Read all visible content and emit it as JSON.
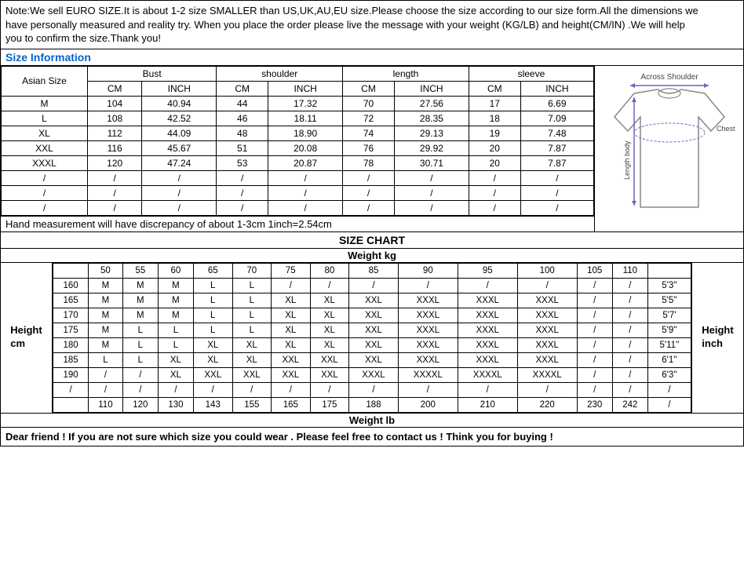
{
  "note": {
    "l1": "Note:We sell EURO SIZE.It is about 1-2 size SMALLER than US,UK,AU,EU size.Please choose the size according to our size form.All the dimensions we",
    "l2": "have personally measured and reality try. When you place the order please live the message with your weight (KG/LB) and height(CM/IN) .We will help",
    "l3": "you to confirm the size.Thank you!"
  },
  "section_title": "Size Information",
  "size_headers": {
    "asian": "Asian Size",
    "bust": "Bust",
    "shoulder": "shoulder",
    "length": "length",
    "sleeve": "sleeve",
    "cm": "CM",
    "inch": "INCH"
  },
  "size_rows": [
    [
      "M",
      "104",
      "40.94",
      "44",
      "17.32",
      "70",
      "27.56",
      "17",
      "6.69"
    ],
    [
      "L",
      "108",
      "42.52",
      "46",
      "18.11",
      "72",
      "28.35",
      "18",
      "7.09"
    ],
    [
      "XL",
      "112",
      "44.09",
      "48",
      "18.90",
      "74",
      "29.13",
      "19",
      "7.48"
    ],
    [
      "XXL",
      "116",
      "45.67",
      "51",
      "20.08",
      "76",
      "29.92",
      "20",
      "7.87"
    ],
    [
      "XXXL",
      "120",
      "47.24",
      "53",
      "20.87",
      "78",
      "30.71",
      "20",
      "7.87"
    ],
    [
      "/",
      "/",
      "/",
      "/",
      "/",
      "/",
      "/",
      "/",
      "/"
    ],
    [
      "/",
      "/",
      "/",
      "/",
      "/",
      "/",
      "/",
      "/",
      "/"
    ],
    [
      "/",
      "/",
      "/",
      "/",
      "/",
      "/",
      "/",
      "/",
      "/"
    ]
  ],
  "hand_note": "Hand measurement will have discrepancy of about 1-3cm 1inch=2.54cm",
  "chart_title": "SIZE CHART",
  "weight_kg": "Weight kg",
  "weight_lb": "Weight lb",
  "height_cm_lbl": "Height cm",
  "height_in_lbl": "Height inch",
  "weights_kg": [
    "50",
    "55",
    "60",
    "65",
    "70",
    "75",
    "80",
    "85",
    "90",
    "95",
    "100",
    "105",
    "110"
  ],
  "weights_lb": [
    "110",
    "120",
    "130",
    "143",
    "155",
    "165",
    "175",
    "188",
    "200",
    "210",
    "220",
    "230",
    "242"
  ],
  "heights_cm": [
    "160",
    "165",
    "170",
    "175",
    "180",
    "185",
    "190",
    "/"
  ],
  "heights_in": [
    "5'3''",
    "5'5''",
    "5'7'",
    "5'9''",
    "5'11''",
    "6'1''",
    "6'3''",
    "/"
  ],
  "grid": [
    [
      "M",
      "M",
      "M",
      "L",
      "L",
      "/",
      "/",
      "/",
      "/",
      "/",
      "/",
      "/",
      "/"
    ],
    [
      "M",
      "M",
      "M",
      "L",
      "L",
      "XL",
      "XL",
      "XXL",
      "XXXL",
      "XXXL",
      "XXXL",
      "/",
      "/"
    ],
    [
      "M",
      "M",
      "M",
      "L",
      "L",
      "XL",
      "XL",
      "XXL",
      "XXXL",
      "XXXL",
      "XXXL",
      "/",
      "/"
    ],
    [
      "M",
      "L",
      "L",
      "L",
      "L",
      "XL",
      "XL",
      "XXL",
      "XXXL",
      "XXXL",
      "XXXL",
      "/",
      "/"
    ],
    [
      "M",
      "L",
      "L",
      "XL",
      "XL",
      "XL",
      "XL",
      "XXL",
      "XXXL",
      "XXXL",
      "XXXL",
      "/",
      "/"
    ],
    [
      "L",
      "L",
      "XL",
      "XL",
      "XL",
      "XXL",
      "XXL",
      "XXL",
      "XXXL",
      "XXXL",
      "XXXL",
      "/",
      "/"
    ],
    [
      "/",
      "/",
      "XL",
      "XXL",
      "XXL",
      "XXL",
      "XXL",
      "XXXL",
      "XXXXL",
      "XXXXL",
      "XXXXL",
      "/",
      "/"
    ],
    [
      "/",
      "/",
      "/",
      "/",
      "/",
      "/",
      "/",
      "/",
      "/",
      "/",
      "/",
      "/",
      "/"
    ]
  ],
  "diagram": {
    "across": "Across Shoulder",
    "chest": "Chest width",
    "length": "Length body",
    "shirt_fill": "#ffffff",
    "shirt_stroke": "#888888",
    "arrow_color": "#7b5cc4"
  },
  "footer": "Dear friend ! If you are not sure which size you could wear . Please feel free to contact us ! Think you for buying !",
  "last_slash": "/"
}
